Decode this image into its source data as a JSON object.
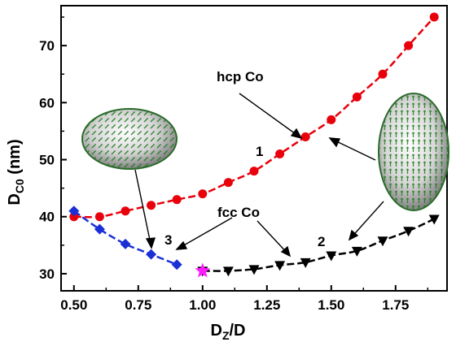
{
  "chart_data": {
    "type": "line",
    "xlabel": {
      "main": "D",
      "sub": "Z",
      "tail": "/D"
    },
    "ylabel": {
      "main": "D",
      "sub": "C0",
      "tail": " (nm)"
    },
    "xlim": [
      0.45,
      1.95
    ],
    "ylim": [
      27,
      77
    ],
    "xticks": [
      "0.50",
      "0.75",
      "1.00",
      "1.25",
      "1.50",
      "1.75"
    ],
    "yticks": [
      "30",
      "40",
      "50",
      "60",
      "70"
    ],
    "grid": false,
    "series": [
      {
        "color": "#e8000b",
        "marker": "circle",
        "x": [
          0.5,
          0.6,
          0.7,
          0.8,
          0.9,
          1.0,
          1.1,
          1.2,
          1.3,
          1.4,
          1.5,
          1.6,
          1.7,
          1.8,
          1.9
        ],
        "y": [
          40.0,
          40.0,
          41.0,
          42.0,
          43.0,
          44.0,
          46.0,
          48.0,
          51.0,
          54.0,
          57.0,
          61.0,
          65.0,
          70.0,
          75.0
        ]
      },
      {
        "color": "#000000",
        "marker": "triangle-down",
        "x": [
          1.0,
          1.1,
          1.2,
          1.3,
          1.4,
          1.5,
          1.6,
          1.7,
          1.8,
          1.9
        ],
        "y": [
          30.5,
          30.5,
          30.8,
          31.5,
          32.0,
          33.2,
          34.0,
          35.8,
          37.5,
          39.6
        ]
      },
      {
        "color": "#1a2fd6",
        "marker": "diamond",
        "x": [
          0.5,
          0.6,
          0.7,
          0.8,
          0.9
        ],
        "y": [
          41.0,
          37.8,
          35.2,
          33.4,
          31.6
        ]
      }
    ],
    "special_point": {
      "x": 1.0,
      "y": 30.5,
      "marker": "star",
      "color": "#ff1aff"
    },
    "annotations": {
      "hcp": "hcp Co",
      "fcc": "fcc Co",
      "label1": "1",
      "label2": "2",
      "label3": "3"
    }
  }
}
